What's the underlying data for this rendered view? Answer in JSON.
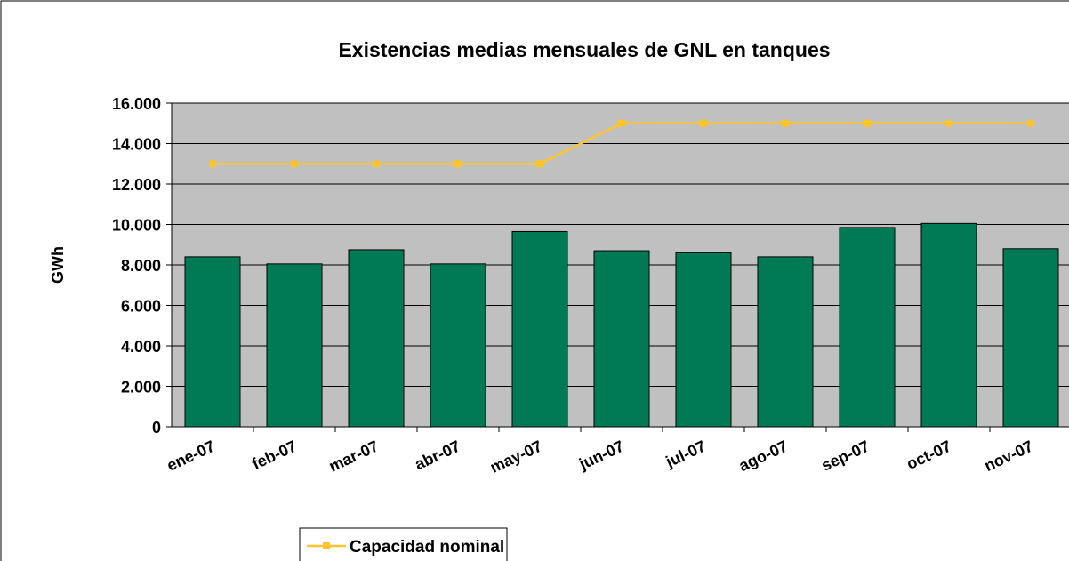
{
  "chart_data": {
    "type": "bar",
    "title": "Existencias medias mensuales de GNL en tanques",
    "y_label": "GWh",
    "categories": [
      "ene-07",
      "feb-07",
      "mar-07",
      "abr-07",
      "may-07",
      "jun-07",
      "jul-07",
      "ago-07",
      "sep-07",
      "oct-07",
      "nov-07"
    ],
    "series": [
      {
        "type": "bar",
        "color": "#007a55",
        "values": [
          8400,
          8050,
          8750,
          8050,
          9650,
          8700,
          8600,
          8400,
          9850,
          10050,
          8800
        ]
      },
      {
        "type": "line",
        "name": "Capacidad nominal",
        "color": "#ffc428",
        "values": [
          13000,
          13000,
          13000,
          13000,
          13000,
          15000,
          15000,
          15000,
          15000,
          15000,
          15000
        ]
      }
    ],
    "ylim": [
      0,
      16000
    ],
    "yticks": [
      {
        "value": 0,
        "label": "0"
      },
      {
        "value": 2000,
        "label": "2.000"
      },
      {
        "value": 4000,
        "label": "4.000"
      },
      {
        "value": 6000,
        "label": "6.000"
      },
      {
        "value": 8000,
        "label": "8.000"
      },
      {
        "value": 10000,
        "label": "10.000"
      },
      {
        "value": 12000,
        "label": "12.000"
      },
      {
        "value": 14000,
        "label": "14.000"
      },
      {
        "value": 16000,
        "label": "16.000"
      }
    ],
    "grid": true,
    "plot_background": "#c0c0c0",
    "legend": "bottom"
  }
}
